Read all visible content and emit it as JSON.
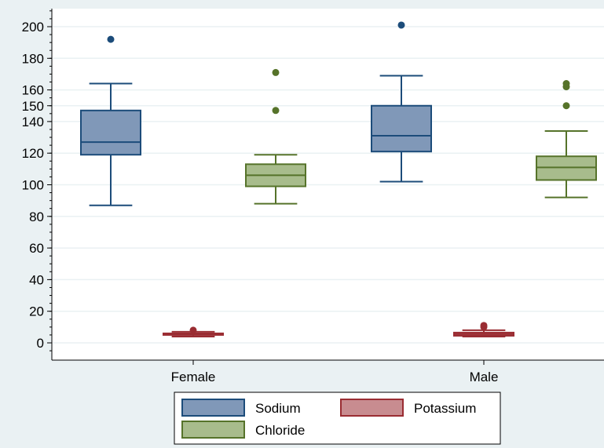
{
  "chart_data": {
    "type": "box",
    "categories": [
      "Female",
      "Male"
    ],
    "yticks": [
      0,
      20,
      40,
      60,
      80,
      100,
      120,
      140,
      150,
      160,
      180,
      200
    ],
    "ylim": [
      -10,
      212
    ],
    "grid": true,
    "legend_position": "bottom",
    "series": [
      {
        "name": "Sodium",
        "fill": "#8098b8",
        "stroke": "#1c4c7a",
        "boxes": [
          {
            "category": "Female",
            "whisker_low": 87,
            "q1": 119,
            "median": 127,
            "q3": 147,
            "whisker_high": 164,
            "outliers": [
              192
            ]
          },
          {
            "category": "Male",
            "whisker_low": 102,
            "q1": 121,
            "median": 131,
            "q3": 150,
            "whisker_high": 169,
            "outliers": [
              201
            ]
          }
        ]
      },
      {
        "name": "Potassium",
        "fill": "#c88c90",
        "stroke": "#9a2c32",
        "boxes": [
          {
            "category": "Female",
            "whisker_low": 4,
            "q1": 5,
            "median": 5.5,
            "q3": 6,
            "whisker_high": 7,
            "outliers": [
              8
            ]
          },
          {
            "category": "Male",
            "whisker_low": 4,
            "q1": 4.5,
            "median": 5.5,
            "q3": 6.5,
            "whisker_high": 8,
            "outliers": [
              10,
              11
            ]
          }
        ]
      },
      {
        "name": "Chloride",
        "fill": "#a8bc8c",
        "stroke": "#56732a",
        "boxes": [
          {
            "category": "Female",
            "whisker_low": 88,
            "q1": 99,
            "median": 106,
            "q3": 113,
            "whisker_high": 119,
            "outliers": [
              147,
              171
            ]
          },
          {
            "category": "Male",
            "whisker_low": 92,
            "q1": 103,
            "median": 111,
            "q3": 118,
            "whisker_high": 134,
            "outliers": [
              150,
              162,
              164
            ]
          }
        ]
      }
    ]
  }
}
